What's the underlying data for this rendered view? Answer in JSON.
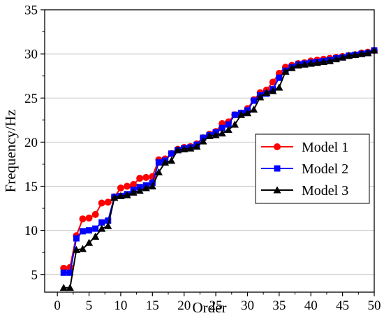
{
  "chart_data": {
    "type": "line",
    "title": "",
    "xlabel": "Order",
    "ylabel": "Frequency/Hz",
    "xlim": [
      -2,
      50
    ],
    "ylim": [
      3,
      35
    ],
    "xticks": [
      0,
      5,
      10,
      15,
      20,
      25,
      30,
      35,
      40,
      45,
      50
    ],
    "yticks": [
      5,
      10,
      15,
      20,
      25,
      30,
      35
    ],
    "grid": "horizontal",
    "legend_position": "right-center",
    "x": [
      1,
      2,
      3,
      4,
      5,
      6,
      7,
      8,
      9,
      10,
      11,
      12,
      13,
      14,
      15,
      16,
      17,
      18,
      19,
      20,
      21,
      22,
      23,
      24,
      25,
      26,
      27,
      28,
      29,
      30,
      31,
      32,
      33,
      34,
      35,
      36,
      37,
      38,
      39,
      40,
      41,
      42,
      43,
      44,
      45,
      46,
      47,
      48,
      49,
      50
    ],
    "series": [
      {
        "name": "Model 1",
        "color": "#ff0000",
        "marker": "circle",
        "values": [
          5.7,
          5.8,
          9.4,
          11.3,
          11.4,
          11.8,
          13.1,
          13.2,
          13.8,
          14.8,
          15.0,
          15.2,
          15.9,
          16.0,
          16.1,
          18.0,
          18.1,
          18.7,
          19.2,
          19.4,
          19.5,
          19.8,
          20.5,
          20.9,
          21.2,
          22.1,
          22.3,
          23.1,
          23.3,
          23.8,
          24.8,
          25.6,
          25.9,
          26.8,
          27.8,
          28.5,
          28.7,
          28.9,
          29.0,
          29.2,
          29.3,
          29.4,
          29.5,
          29.6,
          29.7,
          29.8,
          29.9,
          30.1,
          30.2,
          30.4
        ]
      },
      {
        "name": "Model 2",
        "color": "#0000ff",
        "marker": "square",
        "values": [
          5.2,
          5.2,
          9.1,
          9.9,
          10.0,
          10.2,
          10.9,
          11.1,
          13.8,
          13.9,
          14.1,
          14.6,
          14.9,
          15.1,
          15.4,
          17.7,
          17.9,
          18.7,
          19.1,
          19.3,
          19.4,
          19.7,
          20.5,
          20.8,
          21.1,
          21.6,
          22.0,
          23.1,
          23.3,
          23.6,
          24.7,
          25.3,
          25.5,
          26.0,
          27.3,
          28.1,
          28.5,
          28.8,
          28.9,
          29.0,
          29.1,
          29.2,
          29.3,
          29.5,
          29.6,
          29.8,
          29.9,
          30.0,
          30.1,
          30.4
        ]
      },
      {
        "name": "Model 3",
        "color": "#000000",
        "marker": "triangle",
        "values": [
          3.5,
          3.5,
          7.8,
          7.9,
          8.6,
          9.3,
          10.2,
          10.5,
          13.7,
          13.9,
          14.0,
          14.3,
          14.5,
          14.8,
          15.0,
          16.6,
          17.7,
          17.9,
          19.1,
          19.2,
          19.3,
          19.5,
          20.1,
          20.7,
          20.8,
          21.0,
          21.4,
          22.0,
          23.1,
          23.3,
          23.7,
          25.1,
          25.6,
          25.8,
          26.2,
          28.0,
          28.4,
          28.7,
          28.8,
          28.9,
          29.0,
          29.1,
          29.2,
          29.4,
          29.6,
          29.8,
          29.9,
          30.0,
          30.1,
          30.4
        ]
      }
    ]
  }
}
